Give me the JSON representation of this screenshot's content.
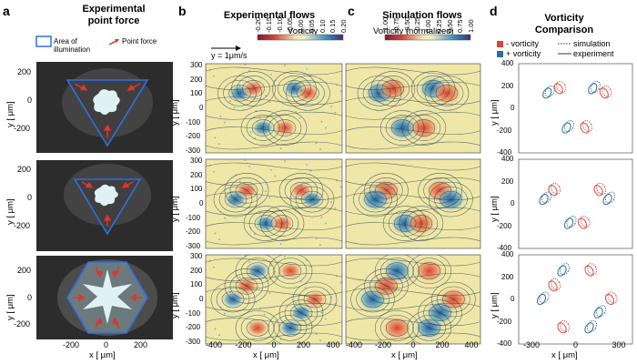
{
  "figure": {
    "panels": {
      "a": {
        "letter": "a",
        "title_line1": "Experimental",
        "title_line2": "point force",
        "legend_area": "Area of illumination",
        "legend_force": "Point force"
      },
      "b": {
        "letter": "b",
        "title": "Experimental flows",
        "colorbar_title": "Vorticity",
        "scale_label": "y = 1μm/s",
        "colorbar_ticks": [
          "-0.20",
          "-0.15",
          "-0.10",
          "-0.05",
          "0.00",
          "0.05",
          "0.10",
          "0.15",
          "0.20"
        ]
      },
      "c": {
        "letter": "c",
        "title": "Simulation flows",
        "colorbar_title": "Vorticity (normalized)",
        "colorbar_ticks": [
          "-1.00",
          "-0.75",
          "-0.50",
          "-0.25",
          "0.00",
          "0.25",
          "0.50",
          "0.75",
          "1.00"
        ]
      },
      "d": {
        "letter": "d",
        "title_line1": "Vorticity",
        "title_line2": "Comparison",
        "legend_neg": "- vorticity",
        "legend_pos": "+ vorticity",
        "legend_sim": "simulation",
        "legend_exp": "experiment"
      }
    },
    "axes": {
      "ylabel": "y [ μm]",
      "xlabel": "x [ μm]",
      "a_yticks": [
        "200",
        "0",
        "-200"
      ],
      "a_xticks": [
        "-200",
        "0",
        "200"
      ],
      "b_yticks": [
        "300",
        "200",
        "100",
        "0",
        "-100",
        "-200",
        "-300"
      ],
      "bc_xticks": [
        "-400",
        "-200",
        "0",
        "200",
        "400"
      ],
      "d_yticks": [
        "400",
        "200",
        "0",
        "-200",
        "-400"
      ],
      "d_xticks": [
        "-300",
        "0",
        "300"
      ]
    },
    "colors": {
      "neg": "#d44a3a",
      "pos": "#2a6f9c",
      "illum": "#2f6fe0",
      "arrow": "#e0362b",
      "field_bg": "#efe7a8"
    }
  }
}
